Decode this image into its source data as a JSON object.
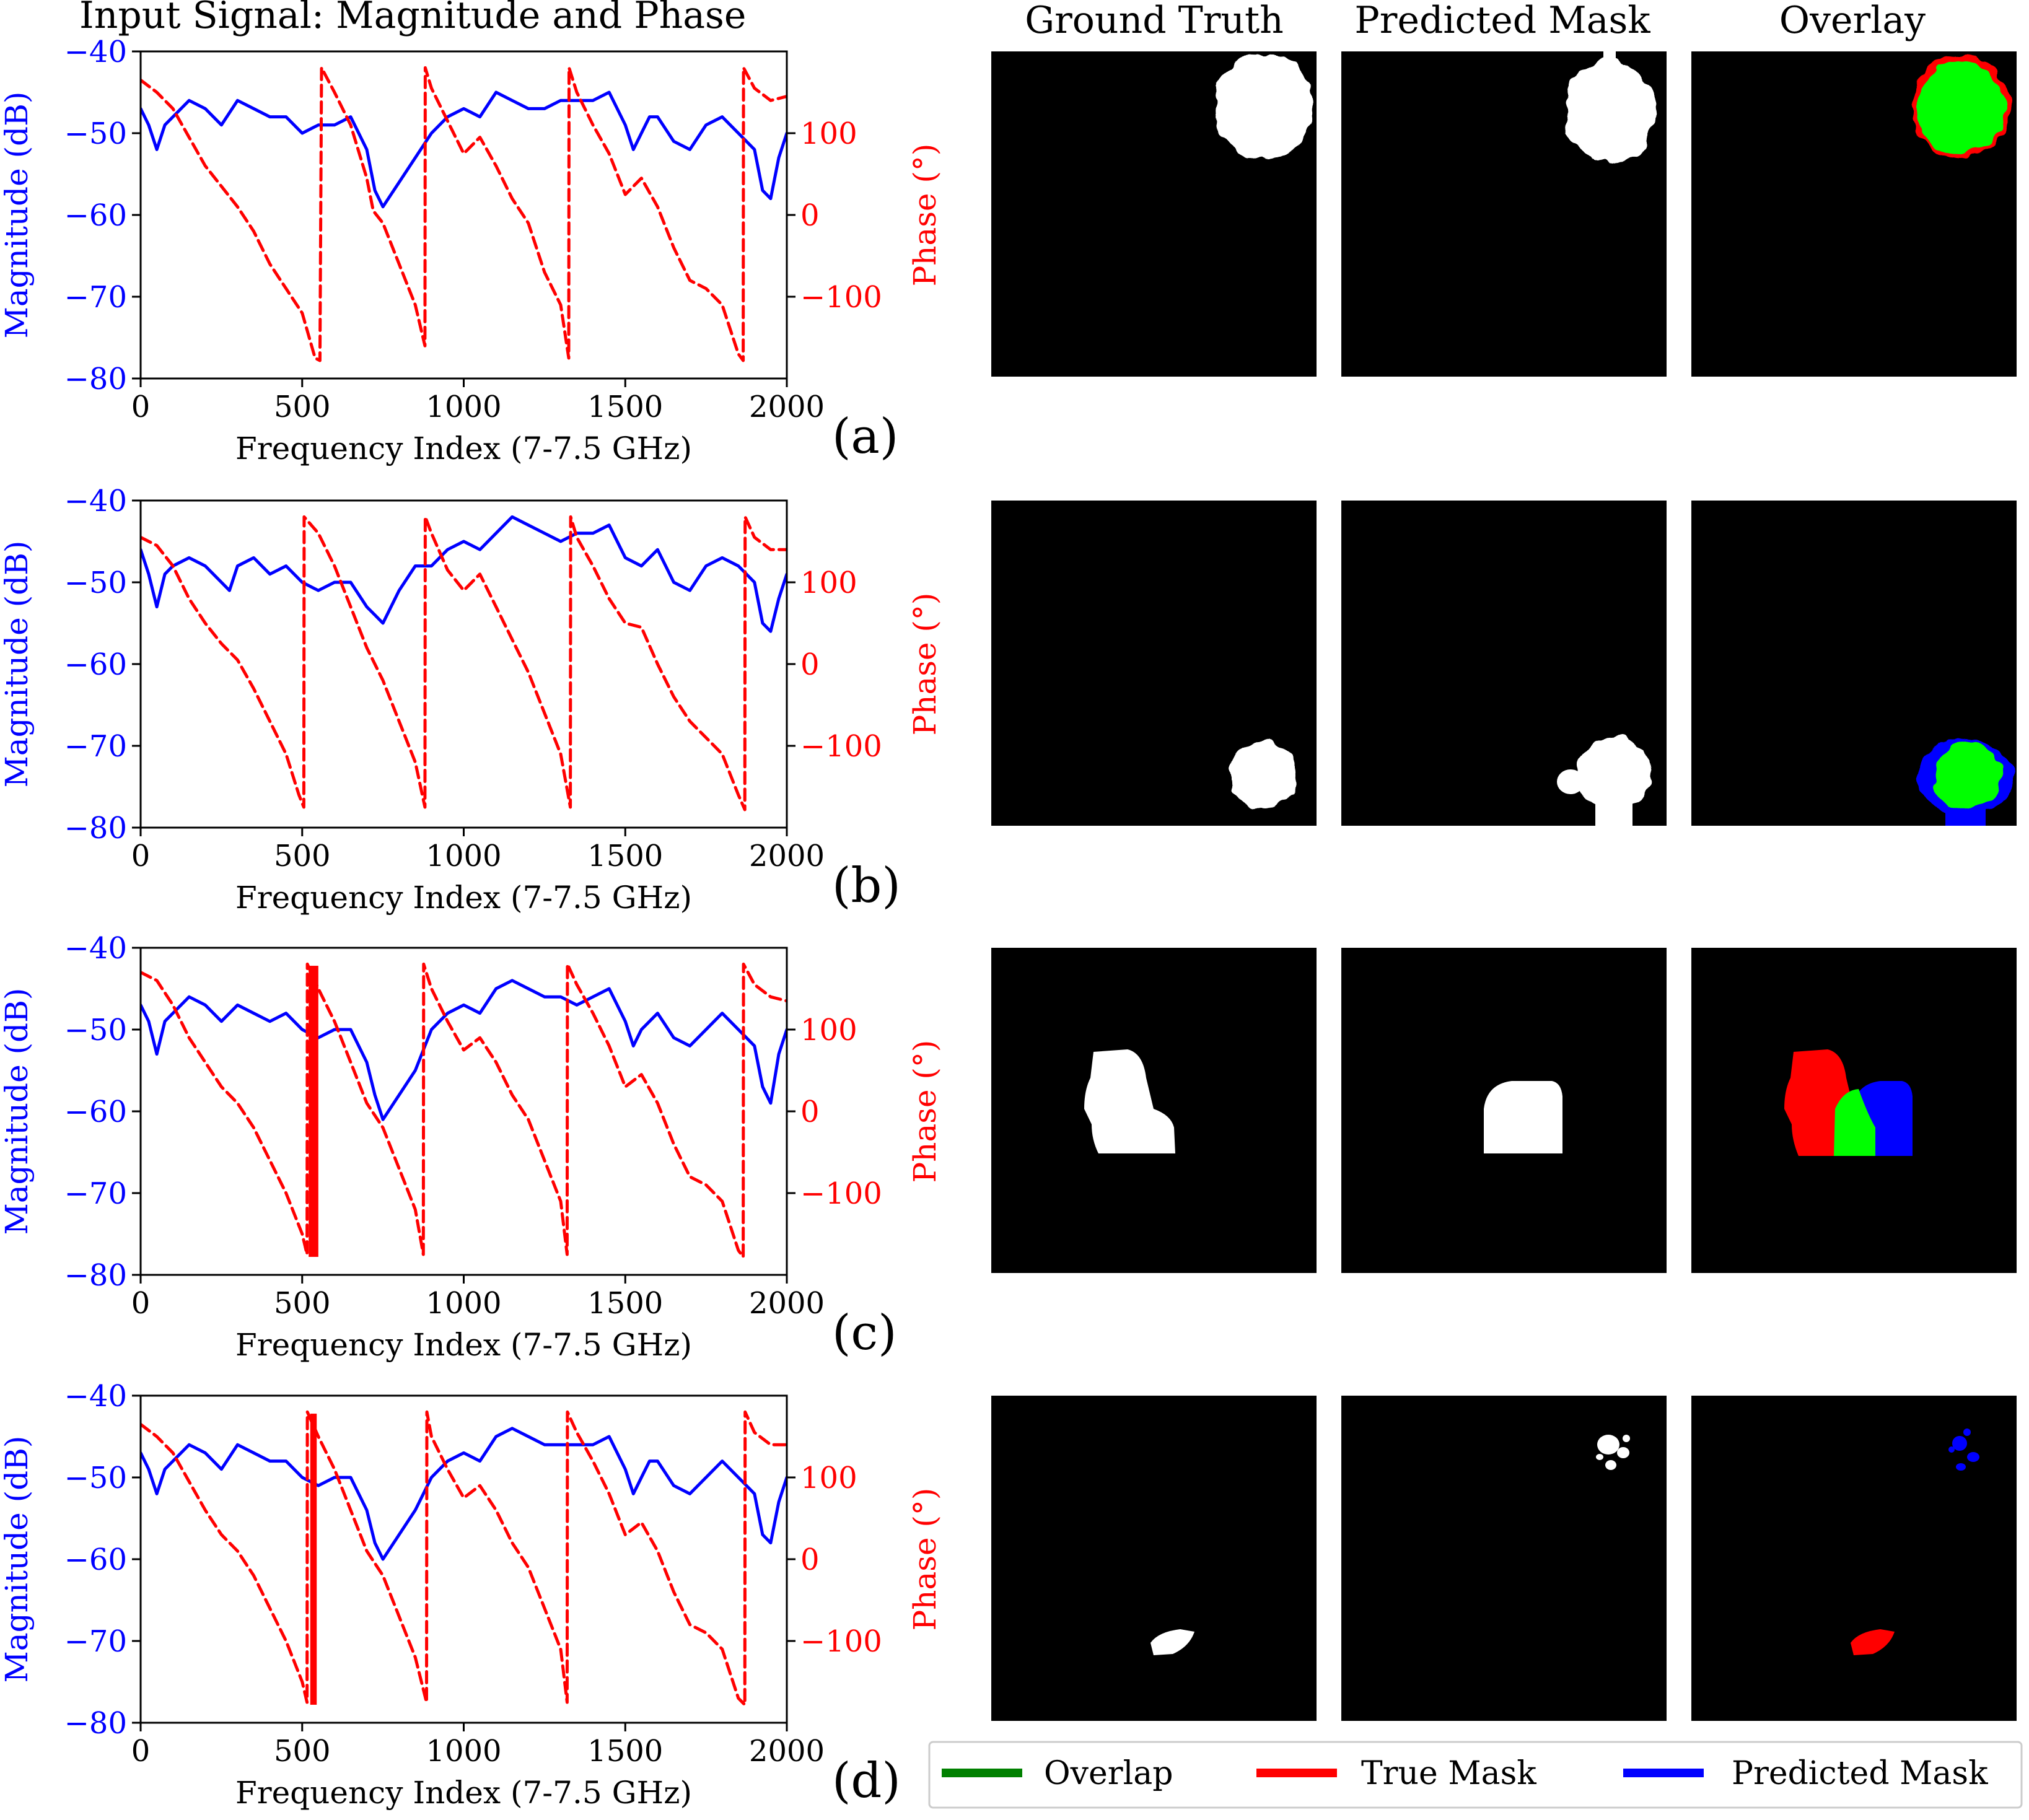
{
  "header": {
    "signal_title": "Input Signal: Magnitude and Phase",
    "col_ground_truth": "Ground Truth",
    "col_predicted": "Predicted Mask",
    "col_overlay": "Overlay"
  },
  "axes": {
    "xlabel": "Frequency Index (7-7.5 GHz)",
    "ylabel_left": "Magnitude (dB)",
    "ylabel_right": "Phase (°)",
    "x_ticks": [
      "0",
      "500",
      "1000",
      "1500",
      "2000"
    ],
    "y_left_ticks": [
      "−40",
      "−50",
      "−60",
      "−70",
      "−80"
    ],
    "y_right_ticks": [
      "100",
      "0",
      "−100"
    ]
  },
  "legend": {
    "overlap": "Overlap",
    "true_mask": "True Mask",
    "predicted_mask": "Predicted Mask"
  },
  "colors": {
    "magnitude": "#0000ff",
    "phase": "#ff0000",
    "overlap": "#00ff00",
    "overlap_legend": "#008000",
    "true_mask": "#ff0000",
    "predicted_mask": "#0000ff",
    "mask_background": "#000000",
    "mask_foreground": "#ffffff"
  },
  "chart_data": [
    {
      "type": "line",
      "panel": "(a)",
      "xlim": [
        0,
        2000
      ],
      "ylim_left": [
        -80,
        -40
      ],
      "ylim_right": [
        -200,
        200
      ],
      "series": [
        {
          "axis": "left",
          "style": "solid",
          "color": "#0000ff",
          "x": [
            0,
            25,
            50,
            75,
            100,
            150,
            200,
            250,
            300,
            350,
            400,
            450,
            500,
            550,
            600,
            650,
            700,
            725,
            750,
            800,
            850,
            900,
            950,
            1000,
            1050,
            1100,
            1150,
            1200,
            1250,
            1300,
            1350,
            1400,
            1450,
            1500,
            1525,
            1550,
            1575,
            1600,
            1650,
            1700,
            1750,
            1800,
            1850,
            1900,
            1925,
            1950,
            1975,
            2000
          ],
          "y": [
            -47,
            -49,
            -52,
            -49,
            -48,
            -46,
            -47,
            -49,
            -46,
            -47,
            -48,
            -48,
            -50,
            -49,
            -49,
            -48,
            -52,
            -57,
            -59,
            -56,
            -53,
            -50,
            -48,
            -47,
            -48,
            -45,
            -46,
            -47,
            -47,
            -46,
            -46,
            -46,
            -45,
            -49,
            -52,
            -50,
            -48,
            -48,
            -51,
            -52,
            -49,
            -48,
            -50,
            -52,
            -57,
            -58,
            -53,
            -50
          ]
        },
        {
          "axis": "right",
          "style": "dashed",
          "color": "#ff0000",
          "x": [
            0,
            50,
            100,
            150,
            200,
            250,
            300,
            350,
            400,
            450,
            500,
            540,
            555,
            560,
            600,
            650,
            700,
            720,
            750,
            800,
            850,
            880,
            881,
            900,
            950,
            1000,
            1050,
            1100,
            1150,
            1200,
            1250,
            1300,
            1325,
            1326,
            1350,
            1400,
            1450,
            1500,
            1550,
            1600,
            1650,
            1700,
            1750,
            1800,
            1850,
            1865,
            1866,
            1900,
            1950,
            2000
          ],
          "y": [
            165,
            150,
            130,
            95,
            60,
            35,
            10,
            -20,
            -60,
            -90,
            -120,
            -175,
            -178,
            180,
            150,
            110,
            45,
            5,
            -10,
            -60,
            -110,
            -160,
            180,
            155,
            115,
            75,
            95,
            60,
            20,
            -10,
            -70,
            -110,
            -175,
            180,
            150,
            110,
            75,
            25,
            45,
            10,
            -40,
            -80,
            -90,
            -110,
            -170,
            -178,
            180,
            155,
            140,
            145
          ]
        }
      ]
    },
    {
      "type": "line",
      "panel": "(b)",
      "xlim": [
        0,
        2000
      ],
      "ylim_left": [
        -80,
        -40
      ],
      "ylim_right": [
        -200,
        200
      ],
      "series": [
        {
          "axis": "left",
          "style": "solid",
          "color": "#0000ff",
          "x": [
            0,
            25,
            50,
            75,
            100,
            150,
            200,
            250,
            275,
            300,
            350,
            400,
            450,
            500,
            550,
            600,
            650,
            700,
            725,
            750,
            800,
            850,
            900,
            950,
            1000,
            1050,
            1100,
            1150,
            1200,
            1250,
            1300,
            1350,
            1400,
            1450,
            1500,
            1550,
            1600,
            1650,
            1700,
            1750,
            1800,
            1850,
            1900,
            1925,
            1950,
            1975,
            2000
          ],
          "y": [
            -46,
            -49,
            -53,
            -49,
            -48,
            -47,
            -48,
            -50,
            -51,
            -48,
            -47,
            -49,
            -48,
            -50,
            -51,
            -50,
            -50,
            -53,
            -54,
            -55,
            -51,
            -48,
            -48,
            -46,
            -45,
            -46,
            -44,
            -42,
            -43,
            -44,
            -45,
            -44,
            -44,
            -43,
            -47,
            -48,
            -46,
            -50,
            -51,
            -48,
            -47,
            -48,
            -50,
            -55,
            -56,
            -52,
            -49
          ]
        },
        {
          "axis": "right",
          "style": "dashed",
          "color": "#ff0000",
          "x": [
            0,
            50,
            100,
            150,
            200,
            250,
            300,
            350,
            400,
            450,
            490,
            505,
            506,
            550,
            600,
            650,
            700,
            750,
            800,
            850,
            880,
            881,
            900,
            950,
            1000,
            1050,
            1100,
            1150,
            1200,
            1250,
            1300,
            1330,
            1331,
            1350,
            1400,
            1450,
            1500,
            1550,
            1600,
            1650,
            1700,
            1750,
            1800,
            1850,
            1870,
            1871,
            1900,
            1950,
            2000
          ],
          "y": [
            155,
            145,
            120,
            80,
            50,
            25,
            5,
            -30,
            -70,
            -110,
            -160,
            -175,
            180,
            160,
            120,
            70,
            20,
            -20,
            -70,
            -120,
            -175,
            180,
            160,
            115,
            90,
            110,
            70,
            30,
            -10,
            -60,
            -110,
            -175,
            180,
            155,
            120,
            80,
            50,
            45,
            0,
            -40,
            -70,
            -90,
            -110,
            -160,
            -178,
            180,
            155,
            140,
            140
          ]
        }
      ]
    },
    {
      "type": "line",
      "panel": "(c)",
      "xlim": [
        0,
        2000
      ],
      "ylim_left": [
        -80,
        -40
      ],
      "ylim_right": [
        -200,
        200
      ],
      "series": [
        {
          "axis": "left",
          "style": "solid",
          "color": "#0000ff",
          "x": [
            0,
            25,
            50,
            75,
            100,
            150,
            200,
            250,
            300,
            350,
            400,
            450,
            500,
            550,
            600,
            650,
            700,
            725,
            750,
            800,
            850,
            900,
            950,
            1000,
            1050,
            1100,
            1150,
            1200,
            1250,
            1300,
            1350,
            1400,
            1450,
            1500,
            1525,
            1550,
            1575,
            1600,
            1650,
            1700,
            1750,
            1800,
            1850,
            1900,
            1925,
            1950,
            1975,
            2000
          ],
          "y": [
            -47,
            -49,
            -53,
            -49,
            -48,
            -46,
            -47,
            -49,
            -47,
            -48,
            -49,
            -48,
            -50,
            -51,
            -50,
            -50,
            -54,
            -58,
            -61,
            -58,
            -55,
            -50,
            -48,
            -47,
            -48,
            -45,
            -44,
            -45,
            -46,
            -46,
            -47,
            -46,
            -45,
            -49,
            -52,
            -50,
            -49,
            -48,
            -51,
            -52,
            -50,
            -48,
            -50,
            -52,
            -57,
            -59,
            -53,
            -50
          ]
        },
        {
          "axis": "right",
          "style": "dashed",
          "color": "#ff0000",
          "x": [
            0,
            50,
            100,
            150,
            200,
            250,
            300,
            350,
            400,
            450,
            500,
            515,
            516,
            550,
            600,
            650,
            700,
            750,
            800,
            850,
            875,
            876,
            900,
            950,
            1000,
            1050,
            1100,
            1150,
            1200,
            1250,
            1300,
            1320,
            1321,
            1350,
            1400,
            1450,
            1500,
            1550,
            1600,
            1650,
            1700,
            1750,
            1800,
            1850,
            1865,
            1866,
            1900,
            1950,
            2000
          ],
          "y": [
            170,
            160,
            130,
            90,
            60,
            30,
            10,
            -20,
            -60,
            -100,
            -150,
            -175,
            180,
            150,
            110,
            60,
            10,
            -20,
            -70,
            -120,
            -175,
            180,
            150,
            110,
            75,
            90,
            60,
            20,
            -10,
            -60,
            -110,
            -175,
            180,
            155,
            120,
            80,
            30,
            45,
            10,
            -40,
            -80,
            -90,
            -110,
            -170,
            -178,
            180,
            155,
            140,
            135
          ]
        },
        {
          "axis": "right",
          "style": "band",
          "color": "#ff0000",
          "x_range": [
            520,
            550
          ],
          "y_range": [
            -178,
            178
          ]
        }
      ]
    },
    {
      "type": "line",
      "panel": "(d)",
      "xlim": [
        0,
        2000
      ],
      "ylim_left": [
        -80,
        -40
      ],
      "ylim_right": [
        -200,
        200
      ],
      "series": [
        {
          "axis": "left",
          "style": "solid",
          "color": "#0000ff",
          "x": [
            0,
            25,
            50,
            75,
            100,
            150,
            200,
            250,
            300,
            350,
            400,
            450,
            500,
            550,
            600,
            650,
            700,
            725,
            750,
            800,
            850,
            900,
            950,
            1000,
            1050,
            1100,
            1150,
            1200,
            1250,
            1300,
            1350,
            1400,
            1450,
            1500,
            1525,
            1550,
            1575,
            1600,
            1650,
            1700,
            1750,
            1800,
            1850,
            1900,
            1925,
            1950,
            1975,
            2000
          ],
          "y": [
            -47,
            -49,
            -52,
            -49,
            -48,
            -46,
            -47,
            -49,
            -46,
            -47,
            -48,
            -48,
            -50,
            -51,
            -50,
            -50,
            -54,
            -58,
            -60,
            -57,
            -54,
            -50,
            -48,
            -47,
            -48,
            -45,
            -44,
            -45,
            -46,
            -46,
            -46,
            -46,
            -45,
            -49,
            -52,
            -50,
            -48,
            -48,
            -51,
            -52,
            -50,
            -48,
            -50,
            -52,
            -57,
            -58,
            -53,
            -50
          ]
        },
        {
          "axis": "right",
          "style": "dashed",
          "color": "#ff0000",
          "x": [
            0,
            50,
            100,
            150,
            200,
            250,
            300,
            350,
            400,
            450,
            500,
            515,
            516,
            550,
            600,
            650,
            700,
            750,
            800,
            850,
            885,
            886,
            900,
            950,
            1000,
            1050,
            1100,
            1150,
            1200,
            1250,
            1300,
            1320,
            1321,
            1350,
            1400,
            1450,
            1500,
            1550,
            1600,
            1650,
            1700,
            1750,
            1800,
            1850,
            1870,
            1871,
            1900,
            1950,
            2000
          ],
          "y": [
            165,
            150,
            130,
            95,
            60,
            30,
            10,
            -20,
            -60,
            -100,
            -150,
            -175,
            180,
            150,
            110,
            60,
            10,
            -20,
            -70,
            -120,
            -175,
            180,
            150,
            110,
            75,
            90,
            60,
            20,
            -10,
            -60,
            -110,
            -175,
            180,
            155,
            120,
            80,
            30,
            45,
            10,
            -40,
            -80,
            -90,
            -110,
            -170,
            -178,
            180,
            155,
            140,
            140
          ]
        },
        {
          "axis": "right",
          "style": "band",
          "color": "#ff0000",
          "x_range": [
            525,
            545
          ],
          "y_range": [
            -178,
            178
          ]
        }
      ]
    }
  ]
}
